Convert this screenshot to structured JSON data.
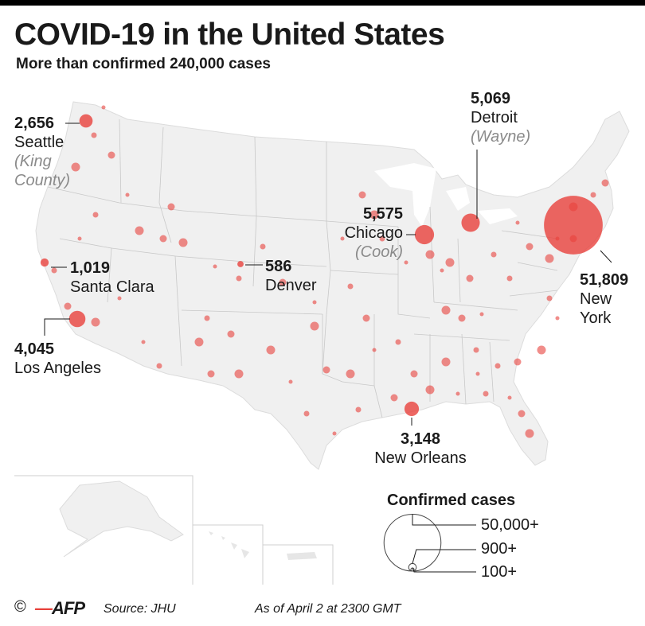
{
  "header": {
    "title": "COVID-19 in the United States",
    "subtitle": "More than confirmed 240,000 cases"
  },
  "colors": {
    "bubble": "#e8413c",
    "land": "#f0f0f0",
    "border": "#c8c8c8",
    "text": "#1a1a1a",
    "muted": "#8a8a8a"
  },
  "callouts": [
    {
      "id": "seattle",
      "value": "2,656",
      "city": "Seattle",
      "county": "(King County)",
      "county_lines": [
        "(King",
        "County)"
      ],
      "cases": 2656
    },
    {
      "id": "santa-clara",
      "value": "1,019",
      "city": "Santa Clara",
      "county": "",
      "cases": 1019
    },
    {
      "id": "denver",
      "value": "586",
      "city": "Denver",
      "county": "",
      "cases": 586
    },
    {
      "id": "los-angeles",
      "value": "4,045",
      "city": "Los Angeles",
      "county": "",
      "cases": 4045
    },
    {
      "id": "chicago",
      "value": "5,575",
      "city": "Chicago",
      "county": "(Cook)",
      "cases": 5575
    },
    {
      "id": "detroit",
      "value": "5,069",
      "city": "Detroit",
      "county": "(Wayne)",
      "cases": 5069
    },
    {
      "id": "new-york",
      "value": "51,809",
      "city": "New York",
      "city_lines": [
        "New",
        "York"
      ],
      "county": "",
      "cases": 51809
    },
    {
      "id": "new-orleans",
      "value": "3,148",
      "city": "New Orleans",
      "county": "",
      "cases": 3148
    }
  ],
  "legend": {
    "title": "Confirmed cases",
    "items": [
      {
        "label": "50,000+",
        "value": 50000
      },
      {
        "label": "900+",
        "value": 900
      },
      {
        "label": "100+",
        "value": 100
      }
    ]
  },
  "footer": {
    "copyright": "©",
    "agency": "AFP",
    "source": "Source: JHU",
    "date": "As of April 2 at 2300 GMT"
  }
}
